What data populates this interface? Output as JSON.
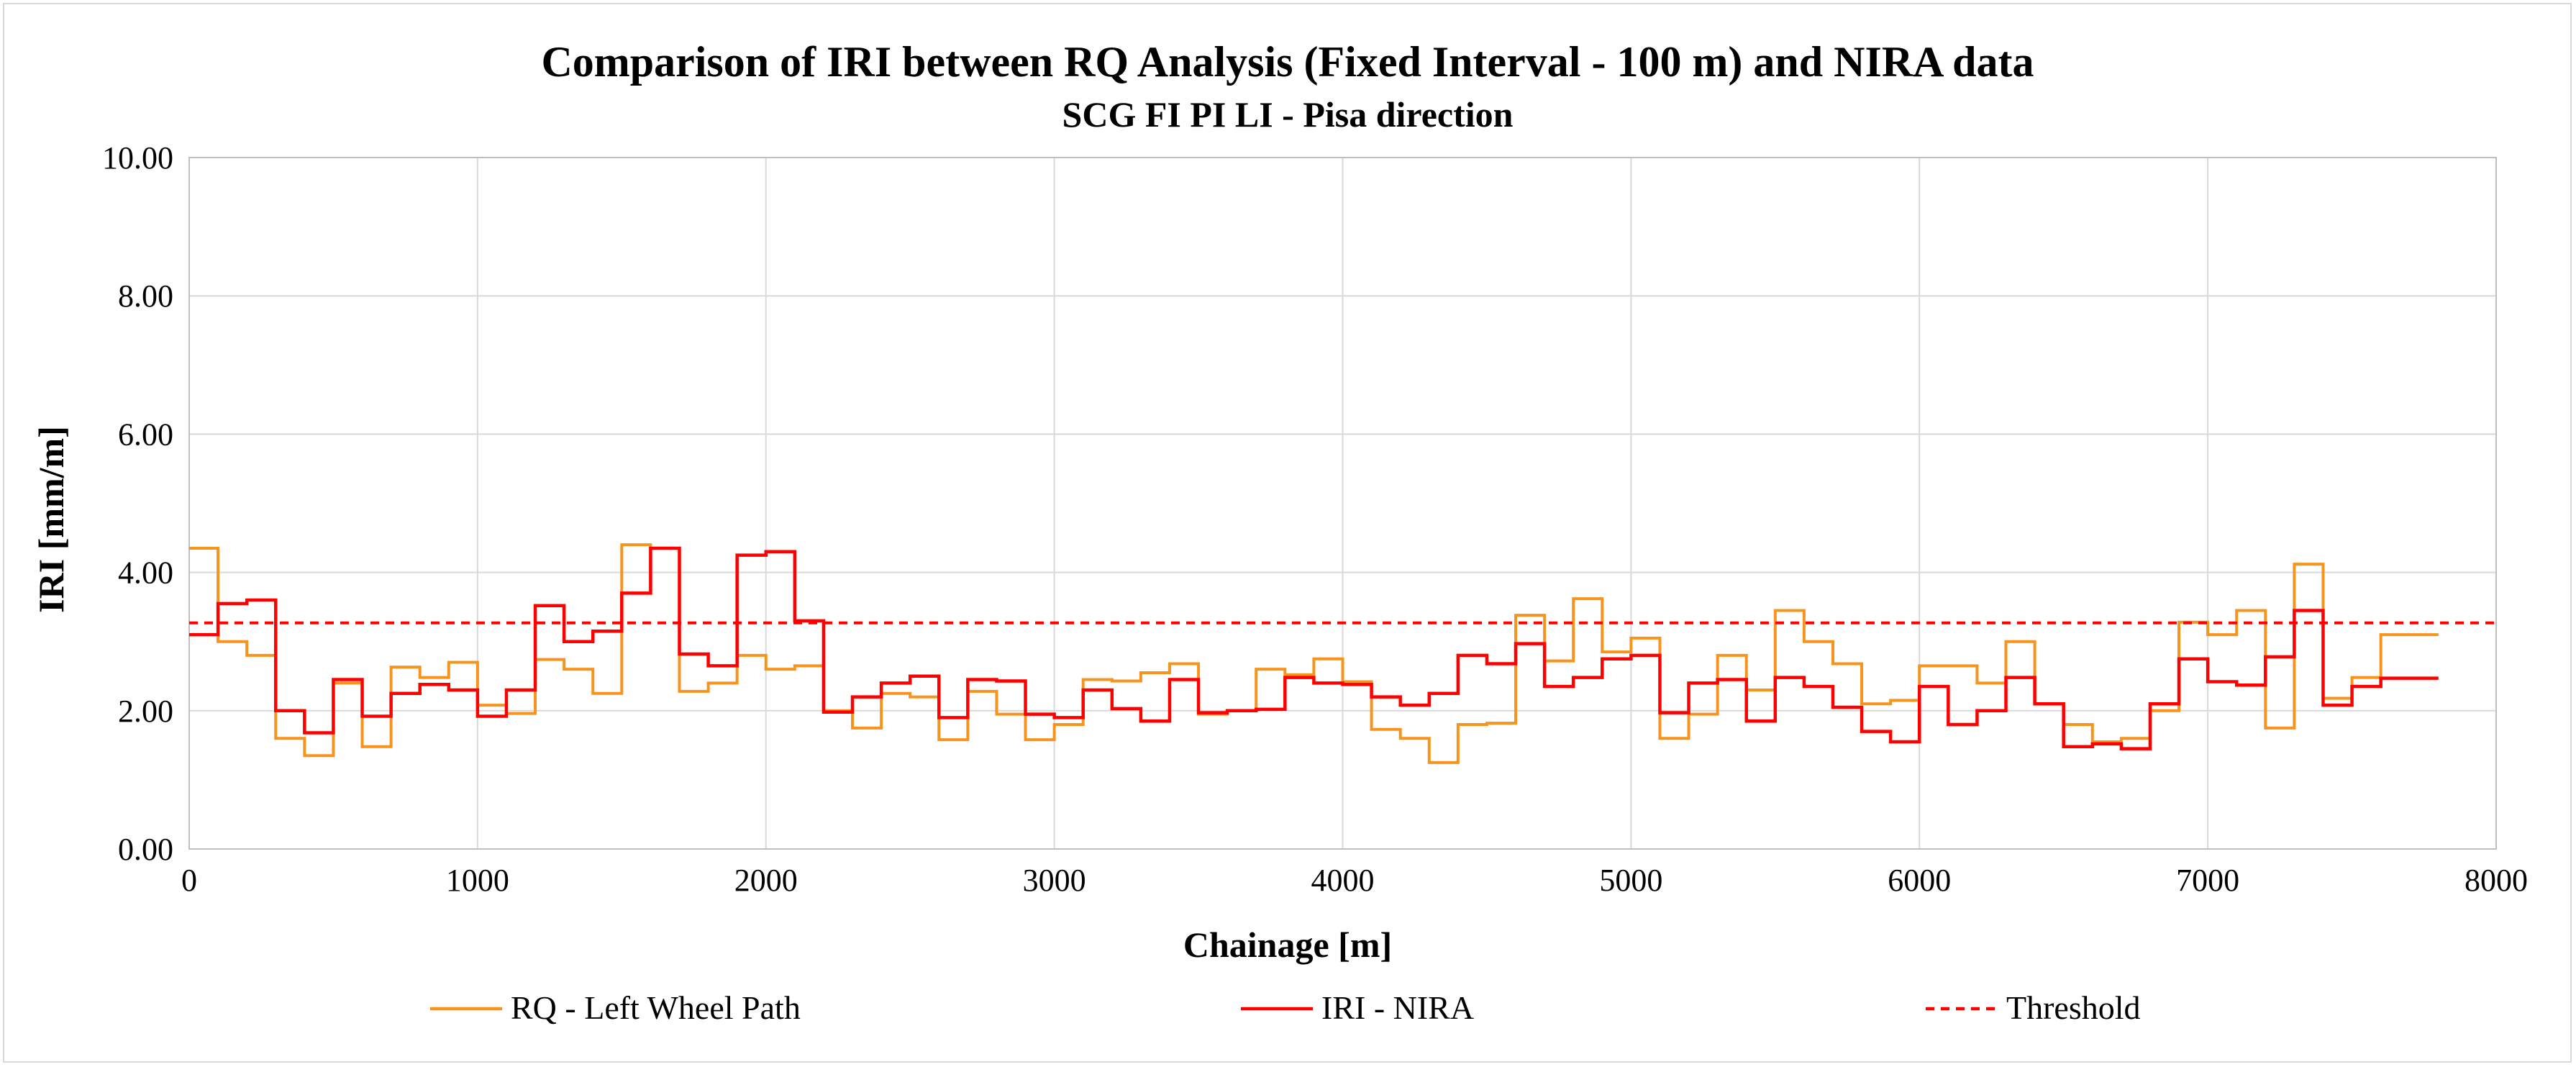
{
  "chart_data": {
    "type": "line",
    "title": "Comparison of IRI between RQ Analysis (Fixed Interval - 100 m) and NIRA data",
    "subtitle": "SCG FI PI LI - Pisa direction",
    "xlabel": "Chainage [m]",
    "ylabel": "IRI [mm/m]",
    "xlim": [
      0,
      8000
    ],
    "ylim": [
      0,
      10
    ],
    "x_ticks": [
      "0",
      "1000",
      "2000",
      "3000",
      "4000",
      "5000",
      "6000",
      "7000",
      "8000"
    ],
    "y_ticks": [
      "0.00",
      "2.00",
      "4.00",
      "6.00",
      "8.00",
      "10.00"
    ],
    "grid": true,
    "legend_position": "bottom",
    "step_interval": 100,
    "series": [
      {
        "name": "RQ - Left Wheel Path",
        "color": "#f7941d",
        "style": "step",
        "x": [
          0,
          100,
          200,
          300,
          400,
          500,
          600,
          700,
          800,
          900,
          1000,
          1100,
          1200,
          1300,
          1400,
          1500,
          1600,
          1700,
          1800,
          1900,
          2000,
          2100,
          2200,
          2300,
          2400,
          2500,
          2600,
          2700,
          2800,
          2900,
          3000,
          3100,
          3200,
          3300,
          3400,
          3500,
          3600,
          3700,
          3800,
          3900,
          4000,
          4100,
          4200,
          4300,
          4400,
          4500,
          4600,
          4700,
          4800,
          4900,
          5000,
          5100,
          5200,
          5300,
          5400,
          5500,
          5600,
          5700,
          5800,
          5900,
          6000,
          6100,
          6200,
          6300,
          6400,
          6500,
          6600,
          6700,
          6800,
          6900,
          7000,
          7100,
          7200,
          7300,
          7400,
          7500,
          7600,
          7700
        ],
        "values": [
          4.35,
          3.0,
          2.8,
          1.6,
          1.35,
          2.4,
          1.48,
          2.63,
          2.48,
          2.7,
          2.08,
          1.96,
          2.74,
          2.6,
          2.25,
          4.4,
          4.35,
          2.28,
          2.4,
          2.8,
          2.6,
          2.65,
          2.0,
          1.75,
          2.25,
          2.2,
          1.58,
          2.28,
          1.95,
          1.58,
          1.8,
          2.45,
          2.43,
          2.55,
          2.68,
          1.95,
          2.0,
          2.6,
          2.52,
          2.75,
          2.42,
          1.73,
          1.6,
          1.25,
          1.8,
          1.82,
          3.38,
          2.72,
          3.62,
          2.85,
          3.05,
          1.6,
          1.95,
          2.8,
          2.3,
          3.45,
          3.0,
          2.68,
          2.1,
          2.15,
          2.65,
          2.65,
          2.4,
          3.0,
          2.1,
          1.8,
          1.55,
          1.6,
          2.0,
          3.28,
          3.1,
          3.45,
          1.75,
          4.12,
          2.18,
          2.48,
          3.1,
          3.1
        ]
      },
      {
        "name": "IRI - NIRA",
        "color": "#ff0000",
        "style": "step",
        "x": [
          0,
          100,
          200,
          300,
          400,
          500,
          600,
          700,
          800,
          900,
          1000,
          1100,
          1200,
          1300,
          1400,
          1500,
          1600,
          1700,
          1800,
          1900,
          2000,
          2100,
          2200,
          2300,
          2400,
          2500,
          2600,
          2700,
          2800,
          2900,
          3000,
          3100,
          3200,
          3300,
          3400,
          3500,
          3600,
          3700,
          3800,
          3900,
          4000,
          4100,
          4200,
          4300,
          4400,
          4500,
          4600,
          4700,
          4800,
          4900,
          5000,
          5100,
          5200,
          5300,
          5400,
          5500,
          5600,
          5700,
          5800,
          5900,
          6000,
          6100,
          6200,
          6300,
          6400,
          6500,
          6600,
          6700,
          6800,
          6900,
          7000,
          7100,
          7200,
          7300,
          7400,
          7500,
          7600,
          7700
        ],
        "values": [
          3.1,
          3.55,
          3.6,
          2.0,
          1.68,
          2.45,
          1.92,
          2.25,
          2.38,
          2.3,
          1.92,
          2.3,
          3.52,
          3.0,
          3.15,
          3.7,
          4.35,
          2.82,
          2.65,
          4.25,
          4.3,
          3.3,
          1.98,
          2.2,
          2.4,
          2.5,
          1.9,
          2.45,
          2.43,
          1.95,
          1.9,
          2.3,
          2.03,
          1.85,
          2.45,
          1.97,
          2.0,
          2.02,
          2.48,
          2.4,
          2.38,
          2.2,
          2.08,
          2.25,
          2.8,
          2.68,
          2.97,
          2.35,
          2.48,
          2.75,
          2.8,
          1.97,
          2.4,
          2.45,
          1.85,
          2.48,
          2.35,
          2.05,
          1.7,
          1.55,
          2.35,
          1.8,
          2.0,
          2.48,
          2.1,
          1.48,
          1.52,
          1.45,
          2.1,
          2.75,
          2.42,
          2.37,
          2.78,
          3.45,
          2.08,
          2.35,
          2.47,
          2.47
        ]
      },
      {
        "name": "Threshold",
        "color": "#ff0000",
        "style": "dashed",
        "x": [
          0,
          8000
        ],
        "values": [
          3.27,
          3.27
        ]
      }
    ]
  }
}
